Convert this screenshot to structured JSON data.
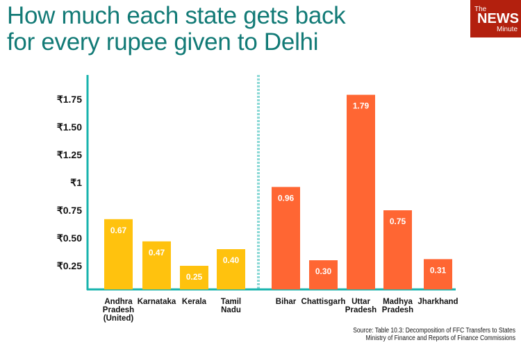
{
  "title_line1": "How much each state gets back",
  "title_line2": "for every rupee given to Delhi",
  "logo": {
    "the": "The",
    "news": "NEWS",
    "minute": "Minute"
  },
  "source_line1": "Source: Table 10.3: Decomposition of FFC Transfers to States",
  "source_line2": "Ministry of Finance and Reports of Finance Commissions",
  "colors": {
    "title": "#127a76",
    "group1": "#ffc20e",
    "group2": "#ff6633",
    "axis": "#17b3ad"
  },
  "chart_data": {
    "type": "bar",
    "title": "How much each state gets back for every rupee given to Delhi",
    "ylim": [
      0,
      1.9
    ],
    "yticks": [
      {
        "value": 0.25,
        "label": "₹0.25"
      },
      {
        "value": 0.5,
        "label": "₹0.50"
      },
      {
        "value": 0.75,
        "label": "₹0.75"
      },
      {
        "value": 1,
        "label": "₹1"
      },
      {
        "value": 1.25,
        "label": "₹1.25"
      },
      {
        "value": 1.5,
        "label": "₹1.50"
      },
      {
        "value": 1.75,
        "label": "₹1.75"
      }
    ],
    "categories": [
      {
        "label": [
          "Andhra",
          "Pradesh",
          "(United)"
        ],
        "value": 0.67,
        "value_label": "0.67",
        "group": 1
      },
      {
        "label": [
          "Karnataka"
        ],
        "value": 0.47,
        "value_label": "0.47",
        "group": 1
      },
      {
        "label": [
          "Kerala"
        ],
        "value": 0.25,
        "value_label": "0.25",
        "group": 1
      },
      {
        "label": [
          "Tamil",
          "Nadu"
        ],
        "value": 0.4,
        "value_label": "0.40",
        "group": 1
      },
      {
        "label": [
          "Bihar"
        ],
        "value": 0.96,
        "value_label": "0.96",
        "group": 2
      },
      {
        "label": [
          "Chattisgarh"
        ],
        "value": 0.3,
        "value_label": "0.30",
        "group": 2
      },
      {
        "label": [
          "Uttar",
          "Pradesh"
        ],
        "value": 1.79,
        "value_label": "1.79",
        "group": 2
      },
      {
        "label": [
          "Madhya",
          "Pradesh"
        ],
        "value": 0.75,
        "value_label": "0.75",
        "group": 2
      },
      {
        "label": [
          "Jharkhand"
        ],
        "value": 0.31,
        "value_label": "0.31",
        "group": 2
      }
    ]
  }
}
